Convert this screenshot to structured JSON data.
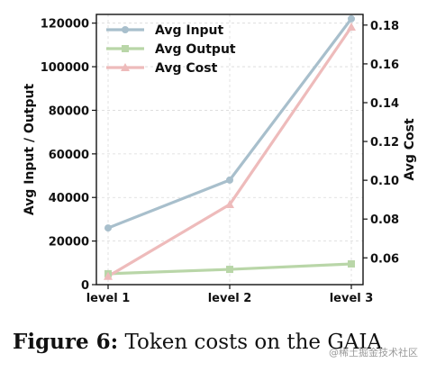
{
  "chart_data": {
    "type": "line",
    "categories": [
      "level 1",
      "level 2",
      "level 3"
    ],
    "series": [
      {
        "name": "Avg Input",
        "axis": "left",
        "marker": "circle",
        "color": "#a8bfcc",
        "values": [
          26000,
          48000,
          122000
        ]
      },
      {
        "name": "Avg Output",
        "axis": "left",
        "marker": "square",
        "color": "#b9d6a8",
        "values": [
          5000,
          7000,
          9500
        ]
      },
      {
        "name": "Avg Cost",
        "axis": "right",
        "marker": "triangle",
        "color": "#eebbbb",
        "values": [
          0.0505,
          0.0875,
          0.179
        ]
      }
    ],
    "ylabel_left": "Avg Input / Output",
    "ylabel_right": "Avg Cost",
    "ylim_left": [
      0,
      124000
    ],
    "ylim_right": [
      0.0462,
      0.1855
    ],
    "yticks_left": [
      "0",
      "20000",
      "40000",
      "60000",
      "80000",
      "100000",
      "120000"
    ],
    "yticks_right": [
      "0.06",
      "0.08",
      "0.10",
      "0.12",
      "0.14",
      "0.16",
      "0.18"
    ],
    "grid": true,
    "legend": "top-left"
  },
  "caption": {
    "figure_label": "Figure 6:",
    "text": "Token costs on the GAIA"
  },
  "watermark": "@稀土掘金技术社区"
}
